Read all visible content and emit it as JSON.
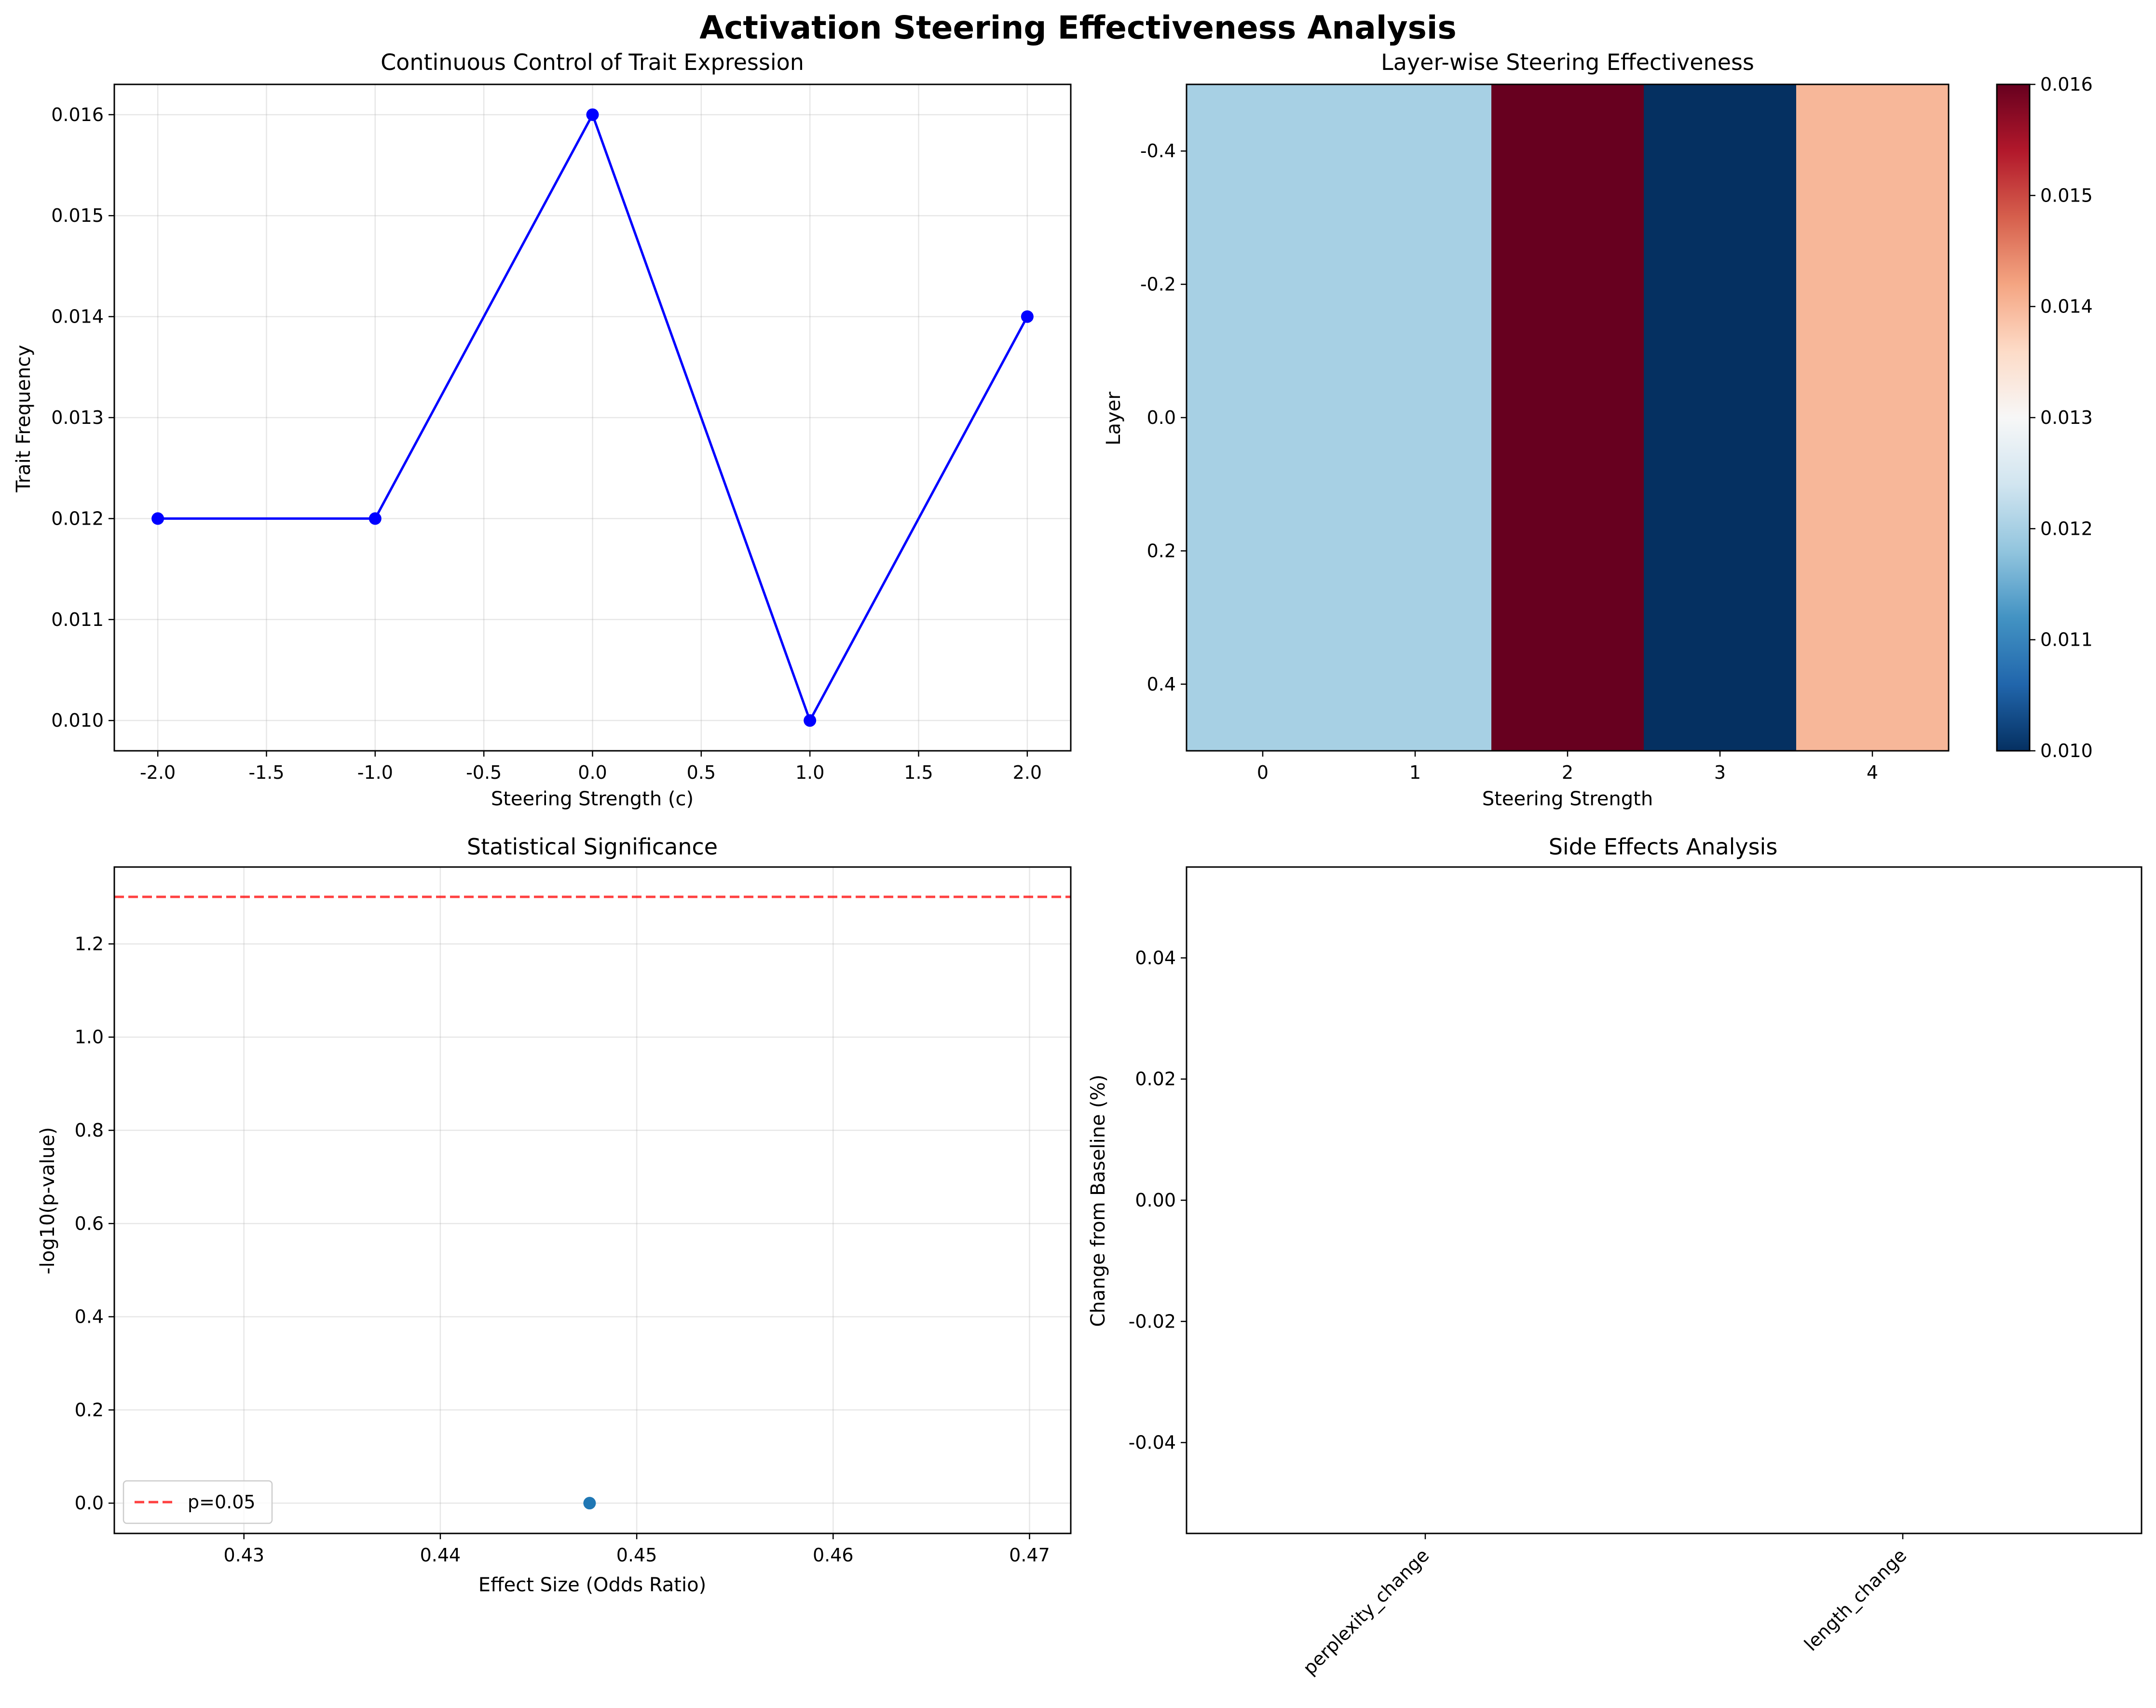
{
  "figure": {
    "suptitle": "Activation Steering Effectiveness Analysis"
  },
  "chart_data": [
    {
      "id": "line",
      "type": "line",
      "title": "Continuous Control of Trait Expression",
      "xlabel": "Steering Strength (c)",
      "ylabel": "Trait Frequency",
      "x": [
        -2.0,
        -1.0,
        0.0,
        1.0,
        2.0
      ],
      "y": [
        0.012,
        0.012,
        0.016,
        0.01,
        0.014
      ],
      "xlim": [
        -2.2,
        2.2
      ],
      "ylim": [
        0.0097,
        0.0163
      ],
      "xticks": [
        -2.0,
        -1.5,
        -1.0,
        -0.5,
        0.0,
        0.5,
        1.0,
        1.5,
        2.0
      ],
      "xtick_labels": [
        "-2.0",
        "-1.5",
        "-1.0",
        "-0.5",
        "0.0",
        "0.5",
        "1.0",
        "1.5",
        "2.0"
      ],
      "yticks": [
        0.01,
        0.011,
        0.012,
        0.013,
        0.014,
        0.015,
        0.016
      ],
      "ytick_labels": [
        "0.010",
        "0.011",
        "0.012",
        "0.013",
        "0.014",
        "0.015",
        "0.016"
      ],
      "grid": true,
      "color": "#0000ff",
      "marker": "circle"
    },
    {
      "id": "heatmap",
      "type": "heatmap",
      "title": "Layer-wise Steering Effectiveness",
      "xlabel": "Steering Strength",
      "ylabel": "Layer",
      "categories": [
        "0",
        "1",
        "2",
        "3",
        "4"
      ],
      "values": [
        [
          0.012,
          0.012,
          0.016,
          0.01,
          0.014
        ]
      ],
      "yticks": [
        -0.4,
        -0.2,
        0.0,
        0.2,
        0.4
      ],
      "ytick_labels": [
        "-0.4",
        "-0.2",
        "0.0",
        "0.2",
        "0.4"
      ],
      "ylim": [
        -0.5,
        0.5
      ],
      "colormap": "RdBu_r",
      "colorbar": {
        "min": 0.01,
        "max": 0.016,
        "ticks": [
          0.01,
          0.011,
          0.012,
          0.013,
          0.014,
          0.015,
          0.016
        ],
        "tick_labels": [
          "0.010",
          "0.011",
          "0.012",
          "0.013",
          "0.014",
          "0.015",
          "0.016"
        ]
      }
    },
    {
      "id": "scatter",
      "type": "scatter",
      "title": "Statistical Significance",
      "xlabel": "Effect Size (Odds Ratio)",
      "ylabel": "-log10(p-value)",
      "points": [
        {
          "x": 0.4476,
          "y": 0.0
        }
      ],
      "xlim": [
        0.4234,
        0.4721
      ],
      "ylim": [
        -0.065,
        1.365
      ],
      "xticks": [
        0.43,
        0.44,
        0.45,
        0.46,
        0.47
      ],
      "xtick_labels": [
        "0.43",
        "0.44",
        "0.45",
        "0.46",
        "0.47"
      ],
      "yticks": [
        0.0,
        0.2,
        0.4,
        0.6,
        0.8,
        1.0,
        1.2
      ],
      "ytick_labels": [
        "0.0",
        "0.2",
        "0.4",
        "0.6",
        "0.8",
        "1.0",
        "1.2"
      ],
      "threshold": {
        "value": 1.301,
        "label": "p=0.05",
        "color": "#ff0000",
        "style": "dashed"
      },
      "legend_position": "lower-left",
      "grid": true,
      "point_color": "#1f77b4"
    },
    {
      "id": "bar",
      "type": "bar",
      "title": "Side Effects Analysis",
      "ylabel": "Change from Baseline (%)",
      "categories": [
        "perplexity_change",
        "length_change"
      ],
      "values": [
        0,
        0
      ],
      "ylim": [
        -0.055,
        0.055
      ],
      "yticks": [
        -0.04,
        -0.02,
        0.0,
        0.02,
        0.04
      ],
      "ytick_labels": [
        "-0.04",
        "-0.02",
        "0.00",
        "0.02",
        "0.04"
      ],
      "xtick_rotation": 45
    }
  ]
}
